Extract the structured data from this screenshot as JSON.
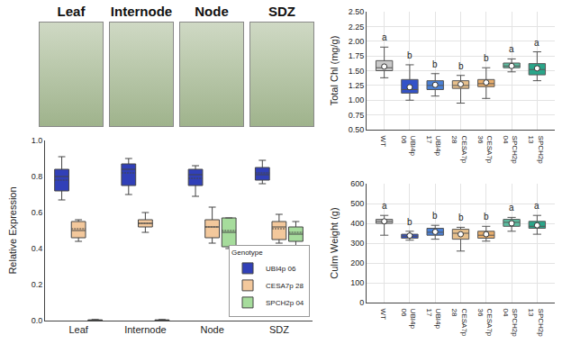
{
  "photo_labels": [
    "Leaf",
    "Internode",
    "Node",
    "SDZ"
  ],
  "chart_data": [
    {
      "type": "box",
      "categories": [
        "Leaf",
        "Internode",
        "Node",
        "SDZ"
      ],
      "ylabel": "Relative Expression",
      "ylim": [
        0,
        1.0
      ],
      "yticks": [
        {
          "value": 0,
          "label": "0.0"
        },
        {
          "value": 0.2,
          "label": "0.2"
        },
        {
          "value": 0.4,
          "label": "0.4"
        },
        {
          "value": 0.6,
          "label": "0.6"
        },
        {
          "value": 0.8,
          "label": "0.8"
        },
        {
          "value": 1.0,
          "label": "1.0"
        }
      ],
      "grid": false,
      "legend": "bottom right",
      "legend_title": "Genotype",
      "series": [
        {
          "name": "UBI4p 06",
          "color": "#3140b8",
          "q1": [
            0.72,
            0.75,
            0.75,
            0.78
          ],
          "median": [
            0.8,
            0.84,
            0.81,
            0.81
          ],
          "q3": [
            0.84,
            0.87,
            0.84,
            0.85
          ],
          "min": [
            0.67,
            0.7,
            0.69,
            0.76
          ],
          "max": [
            0.91,
            0.9,
            0.86,
            0.89
          ],
          "mean": [
            0.78,
            0.82,
            0.79,
            0.82
          ]
        },
        {
          "name": "CESA7p 28",
          "color": "#f3c89c",
          "q1": [
            0.46,
            0.52,
            0.46,
            0.45
          ],
          "median": [
            0.5,
            0.54,
            0.52,
            0.52
          ],
          "q3": [
            0.55,
            0.56,
            0.56,
            0.55
          ],
          "min": [
            0.44,
            0.49,
            0.43,
            0.43
          ],
          "max": [
            0.56,
            0.6,
            0.63,
            0.59
          ],
          "mean": [
            0.51,
            0.54,
            0.52,
            0.51
          ]
        },
        {
          "name": "SPCH2p 04",
          "color": "#a6dc9c",
          "q1": [
            0.0,
            0.0,
            0.41,
            0.44
          ],
          "median": [
            0.002,
            0.002,
            0.49,
            0.48
          ],
          "q3": [
            0.004,
            0.004,
            0.57,
            0.52
          ],
          "min": [
            0.0,
            0.0,
            0.4,
            0.4
          ],
          "max": [
            0.006,
            0.006,
            0.57,
            0.55
          ],
          "mean": [
            0.002,
            0.002,
            0.5,
            0.49
          ]
        }
      ]
    },
    {
      "type": "box",
      "categories": [
        "WT",
        "UBI4p 06",
        "UBI4p 17",
        "CESA7p 28",
        "CESA7p 36",
        "SPCH2p 04",
        "SPCH2p 13"
      ],
      "ylabel": "Total Chl (mg/g)",
      "ylim": [
        0.5,
        2.5
      ],
      "yticks": [
        {
          "value": 0.5,
          "label": "0.50"
        },
        {
          "value": 0.75,
          "label": "0.75"
        },
        {
          "value": 1.0,
          "label": "1.00"
        },
        {
          "value": 1.25,
          "label": "1.25"
        },
        {
          "value": 1.5,
          "label": "1.50"
        },
        {
          "value": 1.75,
          "label": "1.75"
        },
        {
          "value": 2.0,
          "label": "2.00"
        },
        {
          "value": 2.25,
          "label": "2.25"
        },
        {
          "value": 2.5,
          "label": "2.50"
        }
      ],
      "grid": true,
      "colors": [
        "#c9c9c9",
        "#3352c8",
        "#4a80d6",
        "#e7c08c",
        "#e9ae6c",
        "#5cc0a2",
        "#2aa68a"
      ],
      "q1": [
        1.5,
        1.12,
        1.18,
        1.2,
        1.23,
        1.55,
        1.43
      ],
      "median": [
        1.55,
        1.18,
        1.25,
        1.25,
        1.28,
        1.58,
        1.52
      ],
      "q3": [
        1.67,
        1.35,
        1.33,
        1.33,
        1.35,
        1.63,
        1.62
      ],
      "min": [
        1.38,
        1.0,
        1.07,
        0.95,
        1.03,
        1.48,
        1.33
      ],
      "max": [
        1.9,
        1.6,
        1.45,
        1.42,
        1.55,
        1.7,
        1.82
      ],
      "mean": [
        1.57,
        1.22,
        1.26,
        1.27,
        1.3,
        1.58,
        1.54
      ],
      "annotations": [
        "a",
        "b",
        "b",
        "b",
        "b",
        "a",
        "a"
      ]
    },
    {
      "type": "box",
      "categories": [
        "WT",
        "UBI4p 06",
        "UBI4p 17",
        "CESA7p 28",
        "CESA7p 36",
        "SPCH2p 04",
        "SPCH2p 13"
      ],
      "ylabel": "Culm Weight (g)",
      "ylim": [
        0,
        600
      ],
      "yticks": [
        0,
        100,
        200,
        300,
        400,
        500,
        600
      ],
      "grid": true,
      "colors": [
        "#c9c9c9",
        "#3352c8",
        "#4a80d6",
        "#e7c08c",
        "#e9ae6c",
        "#5cc0a2",
        "#2aa68a"
      ],
      "q1": [
        400,
        325,
        340,
        320,
        325,
        385,
        375
      ],
      "median": [
        410,
        335,
        355,
        350,
        340,
        405,
        385
      ],
      "q3": [
        420,
        345,
        375,
        370,
        360,
        420,
        410
      ],
      "min": [
        340,
        315,
        320,
        260,
        310,
        360,
        345
      ],
      "max": [
        440,
        360,
        390,
        380,
        385,
        430,
        440
      ],
      "mean": [
        410,
        338,
        357,
        345,
        345,
        400,
        390
      ],
      "annotations": [
        "a",
        "b",
        "b",
        "b",
        "b",
        "a",
        "a"
      ]
    }
  ]
}
